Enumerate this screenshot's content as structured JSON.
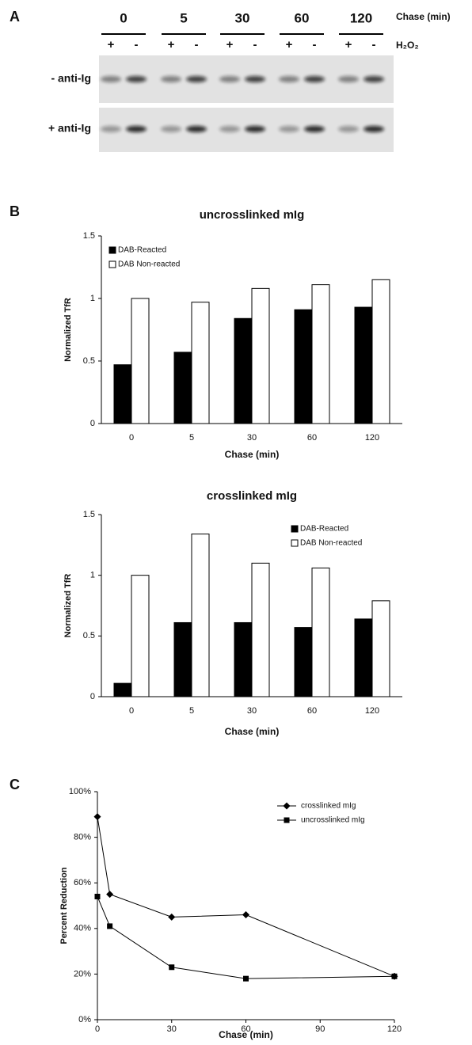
{
  "panel_labels": [
    "A",
    "B",
    "C"
  ],
  "blot": {
    "chase_label": "Chase (min)",
    "timepoints": [
      "0",
      "5",
      "30",
      "60",
      "120"
    ],
    "treatment_label": "H₂O₂",
    "signs": [
      "+",
      "-"
    ],
    "rows": [
      "- anti-Ig",
      "+ anti-Ig"
    ]
  },
  "chart_data": [
    {
      "type": "bar",
      "title": "uncrosslinked mIg",
      "x_label": "Chase (min)",
      "y_label": "Normalized TfR",
      "categories": [
        "0",
        "5",
        "30",
        "60",
        "120"
      ],
      "series": [
        {
          "name": "DAB-Reacted",
          "color": "#000000",
          "values": [
            0.47,
            0.57,
            0.84,
            0.91,
            0.93
          ]
        },
        {
          "name": "DAB Non-reacted",
          "color": "#ffffff",
          "values": [
            1.0,
            0.97,
            1.08,
            1.11,
            1.15
          ]
        }
      ],
      "ylim": [
        0,
        1.5
      ],
      "yticks": [
        0,
        0.5,
        1,
        1.5
      ],
      "legend": "top-left"
    },
    {
      "type": "bar",
      "title": "crosslinked mIg",
      "x_label": "Chase (min)",
      "y_label": "Normalized TfR",
      "categories": [
        "0",
        "5",
        "30",
        "60",
        "120"
      ],
      "series": [
        {
          "name": "DAB-Reacted",
          "color": "#000000",
          "values": [
            0.11,
            0.61,
            0.61,
            0.57,
            0.64
          ]
        },
        {
          "name": "DAB Non-reacted",
          "color": "#ffffff",
          "values": [
            1.0,
            1.34,
            1.1,
            1.06,
            0.79
          ]
        }
      ],
      "ylim": [
        0,
        1.5
      ],
      "yticks": [
        0,
        0.5,
        1,
        1.5
      ],
      "legend": "top-right"
    },
    {
      "type": "line",
      "x_label": "Chase (min)",
      "y_label": "Percent Reduction",
      "x": [
        0,
        5,
        30,
        60,
        120
      ],
      "series": [
        {
          "name": "crosslinked mIg",
          "color": "#000000",
          "marker": "diamond",
          "values": [
            89,
            55,
            45,
            46,
            19
          ]
        },
        {
          "name": "uncrosslinked mIg",
          "color": "#000000",
          "marker": "square",
          "values": [
            54,
            41,
            23,
            18,
            19
          ]
        }
      ],
      "xlim": [
        0,
        120
      ],
      "xticks": [
        0,
        30,
        60,
        90,
        120
      ],
      "ylim": [
        0,
        100
      ],
      "yticks": [
        {
          "value": 0,
          "label": "0%"
        },
        {
          "value": 20,
          "label": "20%"
        },
        {
          "value": 40,
          "label": "40%"
        },
        {
          "value": 60,
          "label": "60%"
        },
        {
          "value": 80,
          "label": "80%"
        },
        {
          "value": 100,
          "label": "100%"
        }
      ],
      "legend": "top-right"
    }
  ]
}
